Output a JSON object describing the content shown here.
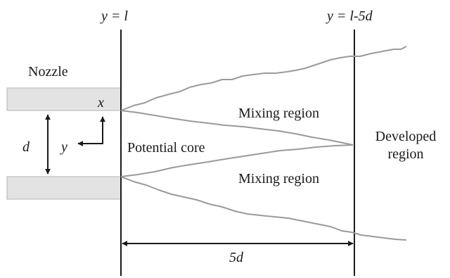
{
  "labels": {
    "y_l": "y = l",
    "y_l5d": "y = l-5d",
    "nozzle": "Nozzle",
    "x_axis": "x",
    "y_axis": "y",
    "d": "d",
    "mixing_upper": "Mixing region",
    "potential_core": "Potential core",
    "mixing_lower": "Mixing region",
    "developed_line1": "Developed",
    "developed_line2": "region",
    "span": "5d"
  },
  "colors": {
    "nozzle_fill": "#e3e3e3",
    "nozzle_stroke": "#b5b5b5",
    "shear_line": "#9a9a9a",
    "ink": "#1a1a1a"
  }
}
